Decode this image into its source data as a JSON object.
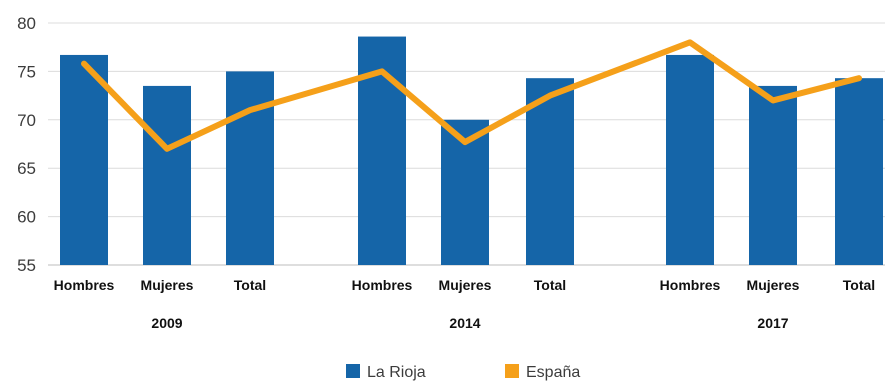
{
  "chart_data": {
    "type": "bar",
    "categories": [
      "Hombres",
      "Mujeres",
      "Total",
      "Hombres",
      "Mujeres",
      "Total",
      "Hombres",
      "Mujeres",
      "Total"
    ],
    "groups": [
      {
        "label": "2009",
        "start": 0,
        "count": 3
      },
      {
        "label": "2014",
        "start": 3,
        "count": 3
      },
      {
        "label": "2017",
        "start": 6,
        "count": 3
      }
    ],
    "series": [
      {
        "name": "La Rioja",
        "kind": "bar",
        "color": "#1565a8",
        "values": [
          76.7,
          73.5,
          75.0,
          78.6,
          70.0,
          74.3,
          76.7,
          73.5,
          74.3
        ]
      },
      {
        "name": "España",
        "kind": "line",
        "color": "#f5a01a",
        "values": [
          75.8,
          67.0,
          71.0,
          75.0,
          67.7,
          72.5,
          78.0,
          72.0,
          74.3
        ]
      }
    ],
    "ylim": [
      55,
      80
    ],
    "yticks": [
      55,
      60,
      65,
      70,
      75,
      80
    ],
    "grid": true,
    "legend_position": "bottom-center"
  }
}
